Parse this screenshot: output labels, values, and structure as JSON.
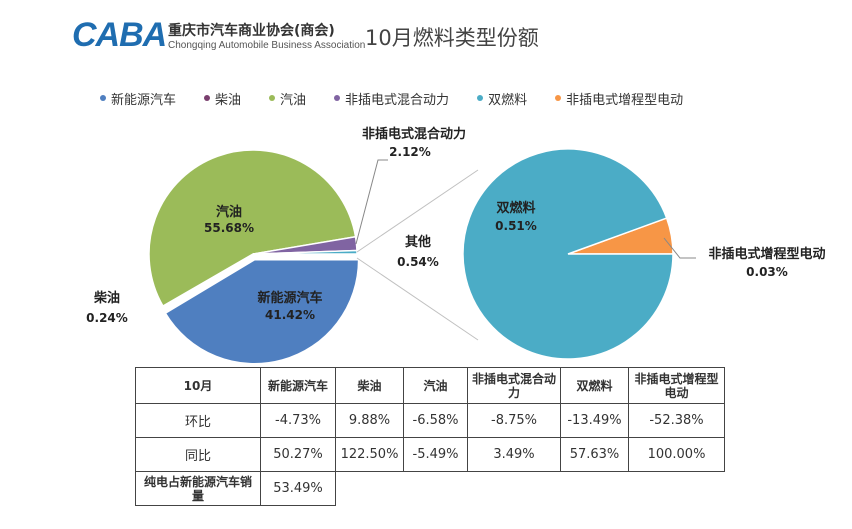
{
  "header": {
    "logo_mark": "CABA",
    "logo_cn": "重庆市汽车商业协会(商会)",
    "logo_en": "Chongqing Automobile Business Association",
    "title": "10月燃料类型份额"
  },
  "colors": {
    "new_energy": "#4f7fc0",
    "diesel": "#7a3f6e",
    "gasoline": "#9bbb59",
    "phev": "#8064a2",
    "dual_fuel": "#4bacc6",
    "erev": "#f79646",
    "connector": "#c0c0c0"
  },
  "legend": [
    {
      "label": "新能源汽车",
      "color": "#4f7fc0"
    },
    {
      "label": "柴油",
      "color": "#7a3f6e"
    },
    {
      "label": "汽油",
      "color": "#9bbb59"
    },
    {
      "label": "非插电式混合动力",
      "color": "#8064a2"
    },
    {
      "label": "双燃料",
      "color": "#4bacc6"
    },
    {
      "label": "非插电式增程型电动",
      "color": "#f79646"
    }
  ],
  "chart_data": [
    {
      "type": "pie",
      "title": "",
      "slices": [
        {
          "name": "新能源汽车",
          "value": 41.42,
          "label": "新能源汽车",
          "value_label": "41.42%"
        },
        {
          "name": "柴油",
          "value": 0.24,
          "label": "柴油",
          "value_label": "0.24%"
        },
        {
          "name": "汽油",
          "value": 55.68,
          "label": "汽油",
          "value_label": "55.68%"
        },
        {
          "name": "非插电式混合动力",
          "value": 2.12,
          "label": "非插电式混合动力",
          "value_label": "2.12%"
        },
        {
          "name": "其他",
          "value": 0.54,
          "label": "其他",
          "value_label": "0.54%"
        }
      ]
    },
    {
      "type": "pie",
      "title": "",
      "slices": [
        {
          "name": "双燃料",
          "value": 0.51,
          "label": "双燃料",
          "value_label": "0.51%"
        },
        {
          "name": "非插电式增程型电动",
          "value": 0.03,
          "label": "非插电式增程型电动",
          "value_label": "0.03%"
        }
      ]
    },
    {
      "type": "table",
      "columns": [
        "10月",
        "新能源汽车",
        "柴油",
        "汽油",
        "非插电式混合动力",
        "双燃料",
        "非插电式增程型电动"
      ],
      "rows": [
        {
          "label": "环比",
          "values": [
            "-4.73%",
            "9.88%",
            "-6.58%",
            "-8.75%",
            "-13.49%",
            "-52.38%"
          ]
        },
        {
          "label": "同比",
          "values": [
            "50.27%",
            "122.50%",
            "-5.49%",
            "3.49%",
            "57.63%",
            "100.00%"
          ]
        },
        {
          "label": "纯电占新能源汽车销量",
          "values": [
            "53.49%"
          ]
        }
      ]
    }
  ]
}
